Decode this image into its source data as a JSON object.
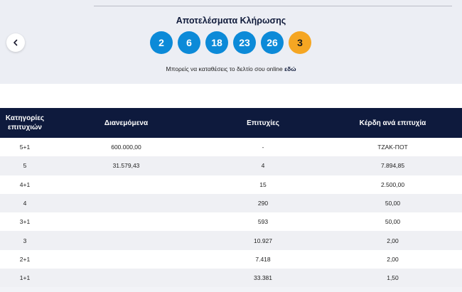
{
  "header": {
    "title": "Αποτελέσματα Κλήρωσης",
    "numbers": [
      "2",
      "6",
      "18",
      "23",
      "26"
    ],
    "joker": "3",
    "online_text": "Μπορείς να καταθέσεις το δελτίο σου online ",
    "online_link": "εδώ"
  },
  "colors": {
    "ball": "#0c8ad8",
    "joker_ball": "#f5a623",
    "table_header": "#0e1a3d"
  },
  "table": {
    "headers": {
      "category_line1": "Κατηγορίες",
      "category_line2": "επιτυχιών",
      "distributed": "Διανεμόμενα",
      "winners": "Επιτυχίες",
      "prize": "Κέρδη ανά επιτυχία"
    },
    "rows": [
      {
        "category": "5+1",
        "distributed": "600.000,00",
        "winners": "-",
        "prize": "ΤΖΑΚ-ΠΟΤ"
      },
      {
        "category": "5",
        "distributed": "31.579,43",
        "winners": "4",
        "prize": "7.894,85"
      },
      {
        "category": "4+1",
        "distributed": "",
        "winners": "15",
        "prize": "2.500,00"
      },
      {
        "category": "4",
        "distributed": "",
        "winners": "290",
        "prize": "50,00"
      },
      {
        "category": "3+1",
        "distributed": "",
        "winners": "593",
        "prize": "50,00"
      },
      {
        "category": "3",
        "distributed": "",
        "winners": "10.927",
        "prize": "2,00"
      },
      {
        "category": "2+1",
        "distributed": "",
        "winners": "7.418",
        "prize": "2,00"
      },
      {
        "category": "1+1",
        "distributed": "",
        "winners": "33.381",
        "prize": "1,50"
      }
    ]
  }
}
